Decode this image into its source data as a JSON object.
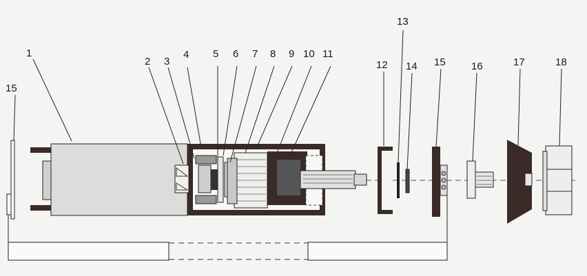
{
  "diagram": {
    "callouts": [
      {
        "id": "c1",
        "text": "1"
      },
      {
        "id": "c2",
        "text": "2"
      },
      {
        "id": "c3",
        "text": "3"
      },
      {
        "id": "c4",
        "text": "4"
      },
      {
        "id": "c5",
        "text": "5"
      },
      {
        "id": "c6",
        "text": "6"
      },
      {
        "id": "c7",
        "text": "7"
      },
      {
        "id": "c8",
        "text": "8"
      },
      {
        "id": "c9",
        "text": "9"
      },
      {
        "id": "c10",
        "text": "10"
      },
      {
        "id": "c11",
        "text": "11"
      },
      {
        "id": "c12",
        "text": "12"
      },
      {
        "id": "c13",
        "text": "13"
      },
      {
        "id": "c14",
        "text": "14"
      },
      {
        "id": "c15a",
        "text": "15"
      },
      {
        "id": "c15b",
        "text": "15"
      },
      {
        "id": "c16",
        "text": "16"
      },
      {
        "id": "c17",
        "text": "17"
      },
      {
        "id": "c18",
        "text": "18"
      }
    ],
    "colors": {
      "line": "#222222",
      "dark_fill": "#3a2a28",
      "body_fill": "#dcdcda",
      "light_fill": "#ececea",
      "background": "#f4f4f2"
    }
  }
}
